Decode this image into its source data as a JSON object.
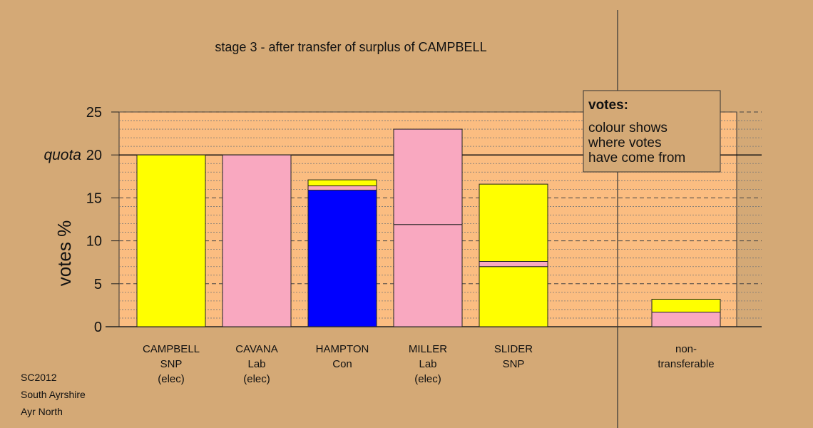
{
  "chart_data": {
    "type": "bar",
    "stacked": true,
    "title": "stage 3 - after transfer of surplus of CAMPBELL",
    "ylabel": "votes %",
    "ylim": [
      0,
      25
    ],
    "yticks": [
      0,
      5,
      10,
      15,
      20,
      25
    ],
    "quota_label": "quota",
    "quota_value": 20,
    "grid": true,
    "colors": {
      "background": "#d4a976",
      "plot_area": "#fbbd81",
      "snp": "#ffff00",
      "lab": "#f9a8c0",
      "con": "#0000ff"
    },
    "categories": [
      {
        "lines": [
          "CAMPBELL",
          "SNP",
          "(elec)"
        ],
        "segments": [
          {
            "party": "SNP",
            "color": "#ffff00",
            "value": 20
          }
        ]
      },
      {
        "lines": [
          "CAVANA",
          "Lab",
          "(elec)"
        ],
        "segments": [
          {
            "party": "Lab",
            "color": "#f9a8c0",
            "value": 20
          }
        ]
      },
      {
        "lines": [
          "HAMPTON",
          "Con"
        ],
        "segments": [
          {
            "party": "Con",
            "color": "#0000ff",
            "value": 15.9
          },
          {
            "party": "Lab",
            "color": "#f9a8c0",
            "value": 0.5
          },
          {
            "party": "SNP",
            "color": "#ffff00",
            "value": 0.7
          }
        ]
      },
      {
        "lines": [
          "MILLER",
          "Lab",
          "(elec)"
        ],
        "segments": [
          {
            "party": "Lab",
            "color": "#f9a8c0",
            "value": 11.9
          },
          {
            "party": "Lab",
            "color": "#f9a8c0",
            "value": 11.1
          }
        ]
      },
      {
        "lines": [
          "SLIDER",
          "SNP"
        ],
        "segments": [
          {
            "party": "SNP",
            "color": "#ffff00",
            "value": 7.0
          },
          {
            "party": "Lab",
            "color": "#f9a8c0",
            "value": 0.6
          },
          {
            "party": "SNP",
            "color": "#ffff00",
            "value": 9.0
          }
        ]
      },
      {
        "lines": [
          "non-",
          "transferable"
        ],
        "segments": [
          {
            "party": "Lab",
            "color": "#f9a8c0",
            "value": 1.7
          },
          {
            "party": "SNP",
            "color": "#ffff00",
            "value": 1.5
          }
        ]
      }
    ],
    "legend": {
      "title": "votes:",
      "lines": [
        "colour shows",
        "where votes",
        "have come from"
      ],
      "placement": "top-right"
    }
  },
  "footer": {
    "line1": "SC2012",
    "line2": "South Ayrshire",
    "line3": "Ayr North"
  }
}
